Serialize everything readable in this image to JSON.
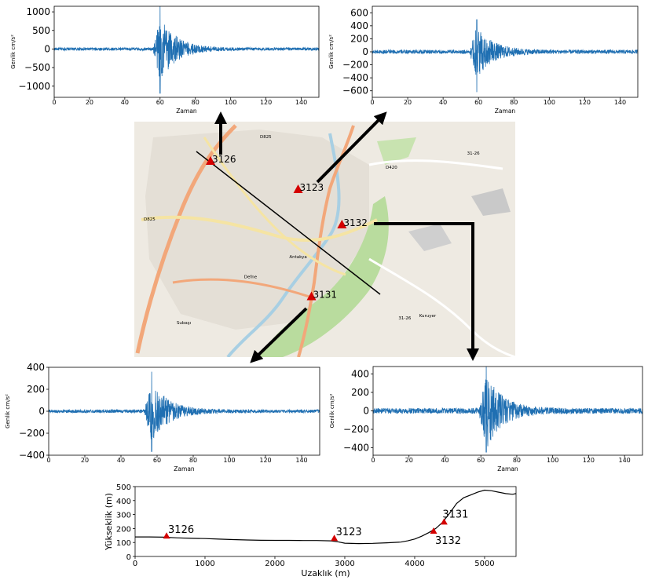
{
  "colors": {
    "trace": "#1f6fb2",
    "station": "#d40000",
    "map_bg": "#eeeae2",
    "map_green": "#b9dc9e",
    "map_road": "#f2a77a",
    "map_yellow": "#f5e4a3",
    "map_river": "#a8cfe3"
  },
  "chart_data": [
    {
      "id": "seis-3126",
      "type": "line",
      "station": "3126",
      "ylabel": "Genlik cm/s²",
      "xlabel": "Zaman",
      "xlim": [
        0,
        150
      ],
      "ylim": [
        -1300,
        1150
      ],
      "xticks": [
        "0",
        "20",
        "40",
        "60",
        "80",
        "100",
        "120",
        "140"
      ],
      "yticks": [
        "1000",
        "500",
        "0",
        "−500",
        "−1000"
      ],
      "ytick_values": [
        1000,
        500,
        0,
        -500,
        -1000
      ],
      "peak_time": 60,
      "peak_max": 1150,
      "peak_min": -1200,
      "noise": 40
    },
    {
      "id": "seis-3123",
      "type": "line",
      "station": "3123",
      "ylabel": "Genlik cm/s²",
      "xlabel": "Zaman",
      "xlim": [
        0,
        150
      ],
      "ylim": [
        -700,
        700
      ],
      "xticks": [
        "0",
        "20",
        "40",
        "60",
        "80",
        "100",
        "120",
        "140"
      ],
      "yticks": [
        "600",
        "400",
        "200",
        "0",
        "−200",
        "−400",
        "−600"
      ],
      "ytick_values": [
        600,
        400,
        200,
        0,
        -200,
        -400,
        -600
      ],
      "peak_time": 59,
      "peak_max": 500,
      "peak_min": -620,
      "noise": 30
    },
    {
      "id": "seis-3131",
      "type": "line",
      "station": "3131",
      "ylabel": "Genlik cm/s²",
      "xlabel": "Zaman",
      "xlim": [
        0,
        150
      ],
      "ylim": [
        -400,
        400
      ],
      "xticks": [
        "0",
        "20",
        "40",
        "60",
        "80",
        "100",
        "120",
        "140"
      ],
      "yticks": [
        "400",
        "200",
        "0",
        "−200",
        "−400"
      ],
      "ytick_values": [
        400,
        200,
        0,
        -200,
        -400
      ],
      "peak_time": 57,
      "peak_max": 360,
      "peak_min": -370,
      "noise": 15
    },
    {
      "id": "seis-3132",
      "type": "line",
      "station": "3132",
      "ylabel": "Genlik cm/s²",
      "xlabel": "Zaman",
      "xlim": [
        0,
        150
      ],
      "ylim": [
        -480,
        480
      ],
      "xticks": [
        "0",
        "20",
        "40",
        "60",
        "80",
        "100",
        "120",
        "140"
      ],
      "yticks": [
        "400",
        "200",
        "0",
        "−200",
        "−400"
      ],
      "ytick_values": [
        400,
        200,
        0,
        -200,
        -400
      ],
      "peak_time": 63,
      "peak_max": 520,
      "peak_min": -450,
      "noise": 30
    },
    {
      "id": "profile",
      "type": "line",
      "ylabel": "Yükseklik (m)",
      "xlabel": "Uzaklık (m)",
      "xlim": [
        0,
        5450
      ],
      "ylim": [
        0,
        500
      ],
      "xticks": [
        "0",
        "1000",
        "2000",
        "3000",
        "4000",
        "5000"
      ],
      "xtick_values": [
        0,
        1000,
        2000,
        3000,
        4000,
        5000
      ],
      "yticks": [
        "0",
        "100",
        "200",
        "300",
        "400",
        "500"
      ],
      "ytick_values": [
        0,
        100,
        200,
        300,
        400,
        500
      ],
      "x": [
        0,
        200,
        400,
        600,
        800,
        1000,
        1200,
        1400,
        1600,
        1800,
        2000,
        2200,
        2400,
        2600,
        2800,
        2900,
        3000,
        3200,
        3400,
        3600,
        3800,
        3900,
        4000,
        4100,
        4200,
        4300,
        4400,
        4500,
        4600,
        4700,
        4800,
        4900,
        5000,
        5100,
        5200,
        5300,
        5400,
        5450
      ],
      "y": [
        140,
        140,
        138,
        133,
        130,
        128,
        124,
        121,
        118,
        116,
        115,
        115,
        114,
        114,
        112,
        105,
        95,
        92,
        94,
        98,
        103,
        112,
        125,
        145,
        170,
        200,
        245,
        310,
        380,
        420,
        440,
        460,
        475,
        470,
        460,
        450,
        445,
        450
      ],
      "stations": [
        {
          "name": "3126",
          "x": 450,
          "y": 145
        },
        {
          "name": "3123",
          "x": 2850,
          "y": 128
        },
        {
          "name": "3132",
          "x": 4270,
          "y": 180
        },
        {
          "name": "3131",
          "x": 4420,
          "y": 245
        }
      ]
    }
  ],
  "map": {
    "stations": [
      {
        "name": "3126",
        "fx": 0.2,
        "fy": 0.17
      },
      {
        "name": "3123",
        "fx": 0.43,
        "fy": 0.29
      },
      {
        "name": "3132",
        "fx": 0.545,
        "fy": 0.44
      },
      {
        "name": "3131",
        "fx": 0.465,
        "fy": 0.745
      }
    ],
    "labels": [
      {
        "text": "D825",
        "fx": 0.345,
        "fy": 0.07
      },
      {
        "text": "D420",
        "fx": 0.675,
        "fy": 0.2
      },
      {
        "text": "31-26",
        "fx": 0.89,
        "fy": 0.14
      },
      {
        "text": "Defne",
        "fx": 0.305,
        "fy": 0.665
      },
      {
        "text": "Antakya",
        "fx": 0.43,
        "fy": 0.58
      },
      {
        "text": "Subaşı",
        "fx": 0.13,
        "fy": 0.86
      },
      {
        "text": "Kuruyer",
        "fx": 0.77,
        "fy": 0.83
      },
      {
        "text": "D825",
        "fx": 0.04,
        "fy": 0.42
      },
      {
        "text": "31-26",
        "fx": 0.71,
        "fy": 0.84
      }
    ]
  }
}
